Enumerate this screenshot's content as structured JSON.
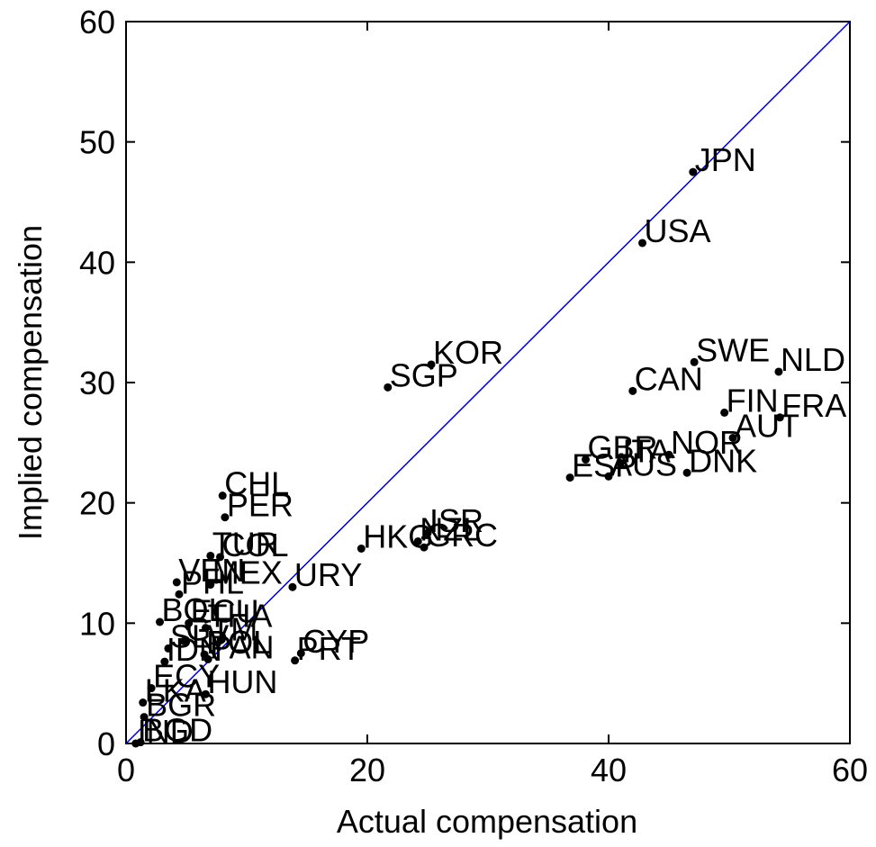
{
  "chart_data": {
    "type": "scatter",
    "xlabel": "Actual compensation",
    "ylabel": "Implied compensation",
    "xlim": [
      0,
      60
    ],
    "ylim": [
      0,
      60
    ],
    "xticks": [
      0,
      20,
      40,
      60
    ],
    "yticks": [
      0,
      10,
      20,
      30,
      40,
      50,
      60
    ],
    "grid": false,
    "reference_line": {
      "from": [
        0,
        0
      ],
      "to": [
        60,
        60
      ],
      "color": "#0000cc"
    },
    "point_color": "#000000",
    "points": [
      {
        "label": "JPN",
        "x": 47.0,
        "y": 47.5
      },
      {
        "label": "USA",
        "x": 42.8,
        "y": 41.6
      },
      {
        "label": "KOR",
        "x": 25.3,
        "y": 31.5
      },
      {
        "label": "SGP",
        "x": 21.7,
        "y": 29.6
      },
      {
        "label": "SWE",
        "x": 47.1,
        "y": 31.7
      },
      {
        "label": "NLD",
        "x": 54.1,
        "y": 30.9
      },
      {
        "label": "CAN",
        "x": 42.0,
        "y": 29.3
      },
      {
        "label": "FIN",
        "x": 49.6,
        "y": 27.5
      },
      {
        "label": "FRA",
        "x": 54.2,
        "y": 27.1
      },
      {
        "label": "AUT",
        "x": 50.3,
        "y": 25.4
      },
      {
        "label": "NOR",
        "x": 45.0,
        "y": 24.0
      },
      {
        "label": "GBR",
        "x": 38.1,
        "y": 23.6
      },
      {
        "label": "ITA",
        "x": 41.0,
        "y": 23.3
      },
      {
        "label": "DNK",
        "x": 46.5,
        "y": 22.5
      },
      {
        "label": "AUS",
        "x": 40.0,
        "y": 22.2
      },
      {
        "label": "ESP",
        "x": 36.8,
        "y": 22.1
      },
      {
        "label": "CHL",
        "x": 8.0,
        "y": 20.6
      },
      {
        "label": "PER",
        "x": 8.2,
        "y": 18.8
      },
      {
        "label": "ISR",
        "x": 25.0,
        "y": 17.5
      },
      {
        "label": "NZL",
        "x": 24.2,
        "y": 16.8
      },
      {
        "label": "GRC",
        "x": 24.7,
        "y": 16.3
      },
      {
        "label": "HKG",
        "x": 19.5,
        "y": 16.2
      },
      {
        "label": "TUR",
        "x": 7.0,
        "y": 15.6
      },
      {
        "label": "COL",
        "x": 7.8,
        "y": 15.5
      },
      {
        "label": "VEN",
        "x": 4.2,
        "y": 13.4
      },
      {
        "label": "MEX",
        "x": 7.0,
        "y": 13.2
      },
      {
        "label": "URY",
        "x": 13.8,
        "y": 13.0
      },
      {
        "label": "PHL",
        "x": 4.4,
        "y": 12.4
      },
      {
        "label": "BOL",
        "x": 2.8,
        "y": 10.1
      },
      {
        "label": "ECU",
        "x": 5.2,
        "y": 10.0
      },
      {
        "label": "THA",
        "x": 6.6,
        "y": 9.6
      },
      {
        "label": "CYP",
        "x": 14.5,
        "y": 7.5
      },
      {
        "label": "PRT",
        "x": 14.0,
        "y": 6.9
      },
      {
        "label": "SLV",
        "x": 3.5,
        "y": 7.9
      },
      {
        "label": "GTM",
        "x": 4.8,
        "y": 8.5
      },
      {
        "label": "POL",
        "x": 6.5,
        "y": 7.4
      },
      {
        "label": "PAN",
        "x": 6.8,
        "y": 7.0
      },
      {
        "label": "IDN",
        "x": 3.2,
        "y": 6.8
      },
      {
        "label": "HUN",
        "x": 6.6,
        "y": 4.1
      },
      {
        "label": "ECY",
        "x": 2.1,
        "y": 4.6
      },
      {
        "label": "BGR",
        "x": 1.5,
        "y": 2.2
      },
      {
        "label": "LKA",
        "x": 1.4,
        "y": 3.4
      },
      {
        "label": "BGD",
        "x": 1.2,
        "y": 0.1
      },
      {
        "label": "IND",
        "x": 0.8,
        "y": 0.0
      }
    ]
  }
}
